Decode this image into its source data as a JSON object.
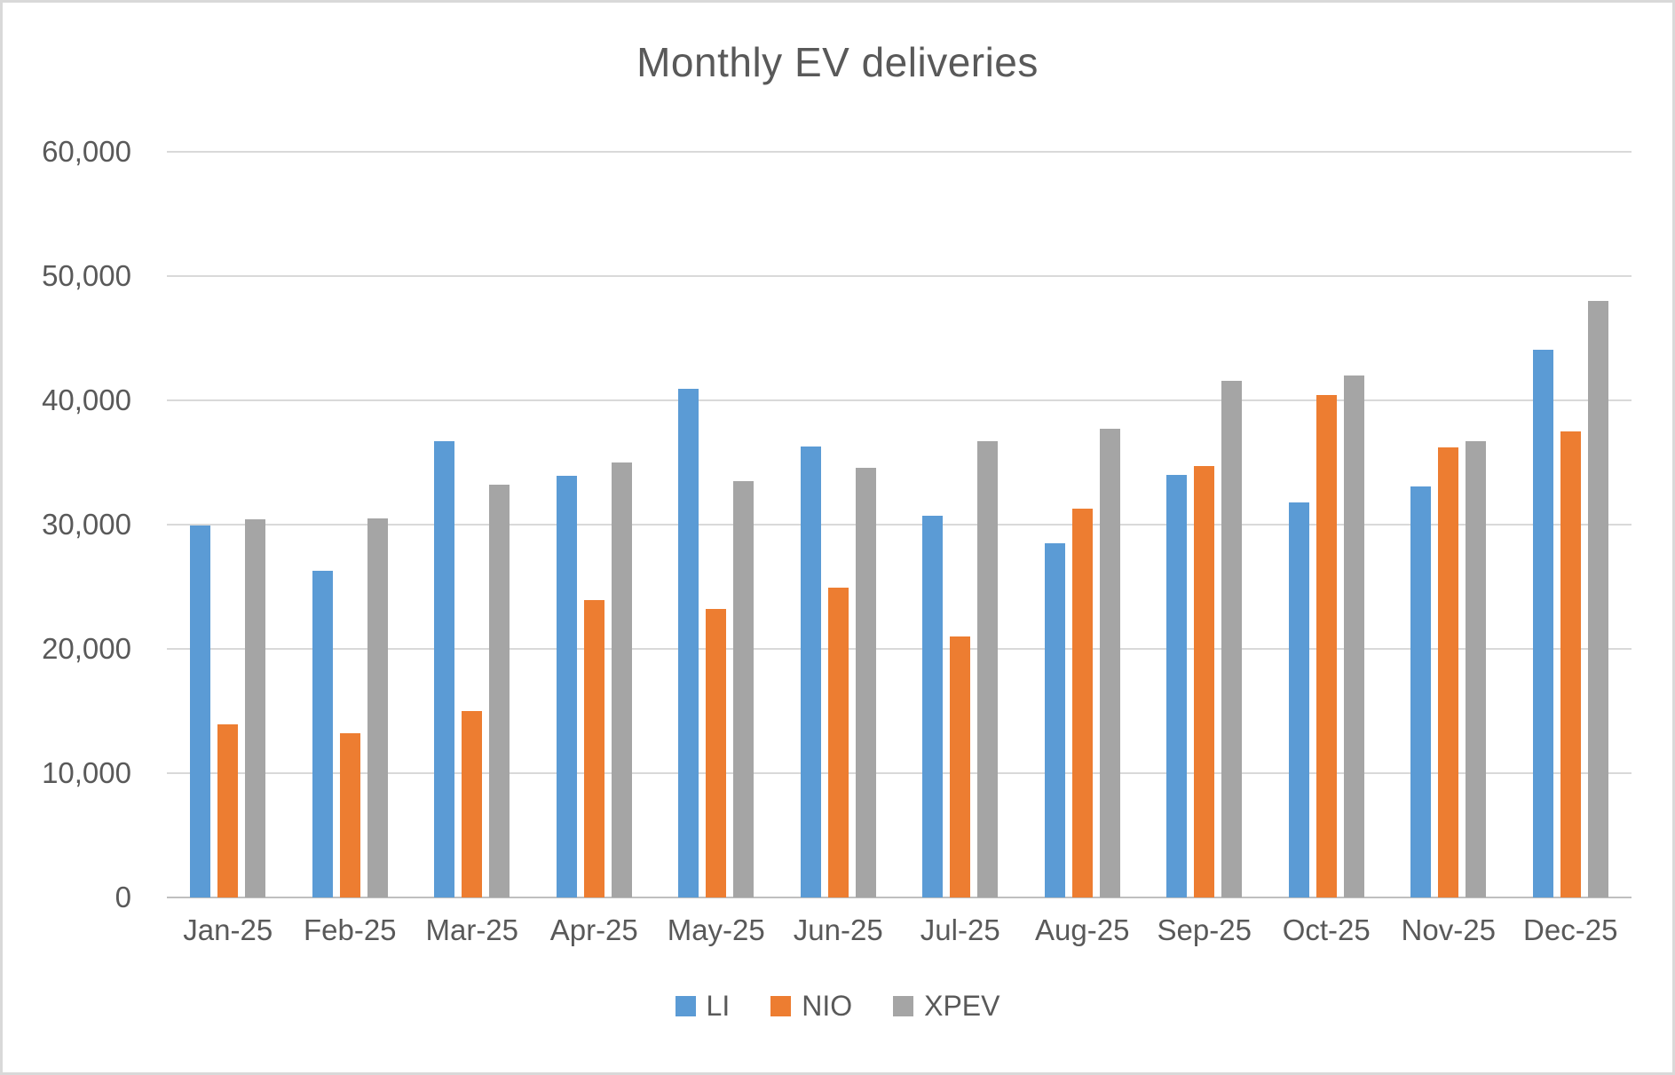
{
  "chart_data": {
    "type": "bar",
    "title": "Monthly EV deliveries",
    "xlabel": "",
    "ylabel": "",
    "categories": [
      "Jan-25",
      "Feb-25",
      "Mar-25",
      "Apr-25",
      "May-25",
      "Jun-25",
      "Jul-25",
      "Aug-25",
      "Sep-25",
      "Oct-25",
      "Nov-25",
      "Dec-25"
    ],
    "series": [
      {
        "name": "LI",
        "color": "#5B9BD5",
        "values": [
          29900,
          26300,
          36700,
          33900,
          40900,
          36300,
          30700,
          28500,
          34000,
          31800,
          33100,
          44100
        ]
      },
      {
        "name": "NIO",
        "color": "#ED7D31",
        "values": [
          13900,
          13200,
          15000,
          23900,
          23200,
          24900,
          21000,
          31300,
          34700,
          40400,
          36200,
          37500
        ]
      },
      {
        "name": "XPEV",
        "color": "#A5A5A5",
        "values": [
          30400,
          30500,
          33200,
          35000,
          33500,
          34600,
          36700,
          37700,
          41600,
          42000,
          36700,
          48000
        ]
      }
    ],
    "ylim": [
      0,
      60000
    ],
    "y_tick_step": 10000,
    "y_tick_labels": [
      "0",
      "10,000",
      "20,000",
      "30,000",
      "40,000",
      "50,000",
      "60,000"
    ],
    "grid": true,
    "legend_position": "bottom"
  },
  "colors": {
    "text": "#595959",
    "gridline": "#D9D9D9",
    "axis_line": "#BFBFBF",
    "background": "#FFFFFF",
    "frame_border": "#D9D9D9"
  }
}
